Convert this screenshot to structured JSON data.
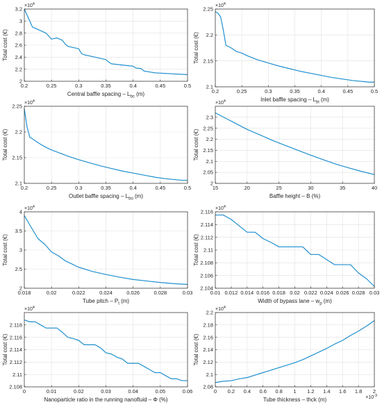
{
  "line_color": "#1f8fcf",
  "axis_color": "#262626",
  "grid_color": "#e1e1e1",
  "chart_data": [
    {
      "type": "line",
      "xlabel": "Central baffle spacing – L",
      "xlabel_sub": "bc",
      "xlabel_unit": " (m)",
      "ylabel": "Total cost (€)",
      "multiplier": "×10",
      "multiplier_exp": "4",
      "xlim": [
        0.2,
        0.5
      ],
      "ylim": [
        2.0,
        3.2
      ],
      "xticks": [
        0.2,
        0.25,
        0.3,
        0.35,
        0.4,
        0.45,
        0.5
      ],
      "xtick_labels": [
        "0.2",
        "0.25",
        "0.3",
        "0.35",
        "0.4",
        "0.45",
        "0.5"
      ],
      "yticks": [
        2.0,
        2.2,
        2.4,
        2.6,
        2.8,
        3.0,
        3.2
      ],
      "ytick_labels": [
        "2",
        "2.2",
        "2.4",
        "2.6",
        "2.8",
        "3",
        "3.2"
      ],
      "grid": true,
      "x": [
        0.2,
        0.205,
        0.21,
        0.215,
        0.22,
        0.225,
        0.23,
        0.235,
        0.24,
        0.245,
        0.25,
        0.255,
        0.26,
        0.265,
        0.27,
        0.275,
        0.28,
        0.285,
        0.29,
        0.295,
        0.3,
        0.305,
        0.31,
        0.32,
        0.33,
        0.34,
        0.35,
        0.355,
        0.36,
        0.37,
        0.38,
        0.39,
        0.4,
        0.405,
        0.41,
        0.415,
        0.42,
        0.43,
        0.44,
        0.45,
        0.46,
        0.47,
        0.48,
        0.49,
        0.5
      ],
      "y": [
        3.2,
        3.1,
        3.0,
        2.9,
        2.88,
        2.86,
        2.84,
        2.82,
        2.8,
        2.75,
        2.7,
        2.71,
        2.72,
        2.7,
        2.68,
        2.62,
        2.58,
        2.57,
        2.56,
        2.55,
        2.54,
        2.46,
        2.44,
        2.42,
        2.4,
        2.38,
        2.36,
        2.32,
        2.29,
        2.28,
        2.27,
        2.26,
        2.25,
        2.22,
        2.215,
        2.21,
        2.17,
        2.155,
        2.14,
        2.135,
        2.13,
        2.125,
        2.12,
        2.115,
        2.11
      ]
    },
    {
      "type": "line",
      "xlabel": "Inlet baffle spacing – L",
      "xlabel_sub": "bi",
      "xlabel_unit": " (m)",
      "ylabel": "Total cost (€)",
      "multiplier": "×10",
      "multiplier_exp": "4",
      "xlim": [
        0.2,
        0.5
      ],
      "ylim": [
        2.1,
        2.25
      ],
      "xticks": [
        0.2,
        0.25,
        0.3,
        0.35,
        0.4,
        0.45,
        0.5
      ],
      "xtick_labels": [
        "0.2",
        "0.25",
        "0.3",
        "0.35",
        "0.4",
        "0.45",
        "0.5"
      ],
      "yticks": [
        2.1,
        2.15,
        2.2,
        2.25
      ],
      "ytick_labels": [
        "2.1",
        "2.15",
        "2.2",
        "2.25"
      ],
      "grid": true,
      "x": [
        0.2,
        0.205,
        0.21,
        0.215,
        0.22,
        0.23,
        0.24,
        0.25,
        0.26,
        0.28,
        0.3,
        0.32,
        0.34,
        0.36,
        0.38,
        0.4,
        0.42,
        0.44,
        0.46,
        0.48,
        0.49,
        0.5
      ],
      "y": [
        2.245,
        2.242,
        2.235,
        2.21,
        2.18,
        2.175,
        2.168,
        2.165,
        2.16,
        2.152,
        2.146,
        2.14,
        2.135,
        2.13,
        2.126,
        2.122,
        2.118,
        2.115,
        2.112,
        2.11,
        2.109,
        2.109
      ]
    },
    {
      "type": "line",
      "xlabel": "Outlet baffle spacing – L",
      "xlabel_sub": "bo",
      "xlabel_unit": " (m)",
      "ylabel": "Total cost (€)",
      "multiplier": "×10",
      "multiplier_exp": "4",
      "xlim": [
        0.2,
        0.5
      ],
      "ylim": [
        2.1,
        2.25
      ],
      "xticks": [
        0.2,
        0.25,
        0.3,
        0.35,
        0.4,
        0.45,
        0.5
      ],
      "xtick_labels": [
        "0.2",
        "0.25",
        "0.3",
        "0.35",
        "0.4",
        "0.45",
        "0.5"
      ],
      "yticks": [
        2.1,
        2.15,
        2.2,
        2.25
      ],
      "ytick_labels": [
        "2.1",
        "2.15",
        "2.2",
        "2.25"
      ],
      "grid": true,
      "x": [
        0.2,
        0.205,
        0.21,
        0.22,
        0.23,
        0.24,
        0.25,
        0.26,
        0.28,
        0.3,
        0.32,
        0.34,
        0.36,
        0.38,
        0.4,
        0.42,
        0.44,
        0.46,
        0.48,
        0.49,
        0.5
      ],
      "y": [
        2.245,
        2.21,
        2.19,
        2.183,
        2.176,
        2.17,
        2.165,
        2.161,
        2.153,
        2.146,
        2.14,
        2.134,
        2.129,
        2.124,
        2.12,
        2.116,
        2.112,
        2.109,
        2.107,
        2.106,
        2.106
      ]
    },
    {
      "type": "line",
      "xlabel": "Baffle height – B (%)",
      "xlabel_sub": "",
      "xlabel_unit": "",
      "ylabel": "Total cost (€)",
      "multiplier": "×10",
      "multiplier_exp": "4",
      "xlim": [
        15,
        40
      ],
      "ylim": [
        2.0,
        2.35
      ],
      "xticks": [
        15,
        20,
        25,
        30,
        35,
        40
      ],
      "xtick_labels": [
        "15",
        "20",
        "25",
        "30",
        "35",
        "40"
      ],
      "yticks": [
        2.0,
        2.05,
        2.1,
        2.15,
        2.2,
        2.25,
        2.3
      ],
      "ytick_labels": [
        "2",
        "2.05",
        "2.1",
        "2.15",
        "2.2",
        "2.25",
        "2.3"
      ],
      "grid": true,
      "x": [
        15,
        16,
        17,
        18,
        19,
        20,
        22,
        24,
        26,
        28,
        30,
        32,
        34,
        36,
        38,
        40
      ],
      "y": [
        2.32,
        2.305,
        2.29,
        2.275,
        2.26,
        2.245,
        2.22,
        2.195,
        2.172,
        2.15,
        2.128,
        2.107,
        2.087,
        2.07,
        2.054,
        2.04
      ]
    },
    {
      "type": "line",
      "xlabel": "Tube pitch – P",
      "xlabel_sub": "t",
      "xlabel_unit": " (m)",
      "ylabel": "Total cost (€)",
      "multiplier": "×10",
      "multiplier_exp": "4",
      "xlim": [
        0.018,
        0.03
      ],
      "ylim": [
        2.0,
        4.0
      ],
      "xticks": [
        0.018,
        0.02,
        0.022,
        0.024,
        0.026,
        0.028,
        0.03
      ],
      "xtick_labels": [
        "0.018",
        "0.02",
        "0.022",
        "0.024",
        "0.026",
        "0.028",
        "0.03"
      ],
      "yticks": [
        2.0,
        2.5,
        3.0,
        3.5,
        4.0
      ],
      "ytick_labels": [
        "2",
        "2.5",
        "3",
        "3.5",
        "4"
      ],
      "grid": true,
      "x": [
        0.018,
        0.0185,
        0.019,
        0.0195,
        0.02,
        0.0205,
        0.021,
        0.022,
        0.023,
        0.024,
        0.025,
        0.026,
        0.027,
        0.028,
        0.029,
        0.03
      ],
      "y": [
        3.9,
        3.6,
        3.3,
        3.15,
        2.95,
        2.85,
        2.72,
        2.55,
        2.44,
        2.36,
        2.29,
        2.23,
        2.19,
        2.15,
        2.12,
        2.1
      ]
    },
    {
      "type": "line",
      "xlabel": "Width of bypass lane – w",
      "xlabel_sub": "p",
      "xlabel_unit": " (m)",
      "ylabel": "Total cost (€)",
      "multiplier": "×10",
      "multiplier_exp": "4",
      "xlim": [
        0.01,
        0.03
      ],
      "ylim": [
        2.104,
        2.116
      ],
      "xticks": [
        0.01,
        0.012,
        0.014,
        0.016,
        0.018,
        0.02,
        0.022,
        0.024,
        0.026,
        0.028,
        0.03
      ],
      "xtick_labels": [
        "0.01",
        "0.012",
        "0.014",
        "0.016",
        "0.018",
        "0.02",
        "0.022",
        "0.024",
        "0.026",
        "0.028",
        "0.03"
      ],
      "yticks": [
        2.104,
        2.106,
        2.108,
        2.11,
        2.112,
        2.114,
        2.116
      ],
      "ytick_labels": [
        "2.104",
        "2.106",
        "2.108",
        "2.11",
        "2.112",
        "2.114",
        "2.116"
      ],
      "grid": true,
      "x": [
        0.01,
        0.011,
        0.012,
        0.013,
        0.014,
        0.015,
        0.016,
        0.017,
        0.018,
        0.019,
        0.02,
        0.021,
        0.022,
        0.023,
        0.024,
        0.025,
        0.026,
        0.027,
        0.028,
        0.029,
        0.03
      ],
      "y": [
        2.1155,
        2.1155,
        2.1148,
        2.1138,
        2.1128,
        2.1128,
        2.1118,
        2.1112,
        2.1105,
        2.1105,
        2.1105,
        2.1105,
        2.1093,
        2.1093,
        2.1085,
        2.1077,
        2.1077,
        2.1077,
        2.1064,
        2.1055,
        2.1043
      ]
    },
    {
      "type": "line",
      "xlabel": "Nanoparticle ratio in the running nanofluid – Φ (%)",
      "xlabel_sub": "",
      "xlabel_unit": "",
      "ylabel": "Total cost (€)",
      "multiplier": "×10",
      "multiplier_exp": "4",
      "xlim": [
        0,
        0.06
      ],
      "ylim": [
        2.108,
        2.12
      ],
      "xticks": [
        0,
        0.01,
        0.02,
        0.03,
        0.04,
        0.05,
        0.06
      ],
      "xtick_labels": [
        "0",
        "0.01",
        "0.02",
        "0.03",
        "0.04",
        "0.05",
        "0.06"
      ],
      "yticks": [
        2.108,
        2.11,
        2.112,
        2.114,
        2.116,
        2.118
      ],
      "ytick_labels": [
        "2.108",
        "2.11",
        "2.112",
        "2.114",
        "2.116",
        "2.118"
      ],
      "grid": true,
      "x": [
        0,
        0.002,
        0.004,
        0.006,
        0.008,
        0.01,
        0.012,
        0.014,
        0.016,
        0.018,
        0.02,
        0.022,
        0.024,
        0.026,
        0.028,
        0.03,
        0.032,
        0.034,
        0.036,
        0.038,
        0.04,
        0.042,
        0.044,
        0.046,
        0.048,
        0.05,
        0.052,
        0.054,
        0.056,
        0.058,
        0.06
      ],
      "y": [
        2.1188,
        2.1185,
        2.1185,
        2.118,
        2.1175,
        2.1175,
        2.1175,
        2.1168,
        2.116,
        2.1158,
        2.1155,
        2.1148,
        2.1148,
        2.1148,
        2.1143,
        2.1135,
        2.1133,
        2.1128,
        2.1125,
        2.1118,
        2.1118,
        2.1118,
        2.1113,
        2.1108,
        2.1103,
        2.1103,
        2.1098,
        2.1093,
        2.1093,
        2.109,
        2.109
      ]
    },
    {
      "type": "line",
      "xlabel": "Tube thickness – thck (m)",
      "xlabel_sub": "",
      "xlabel_unit": "",
      "ylabel": "Total cost (€)",
      "multiplier": "×10",
      "multiplier_exp": "4",
      "x_multiplier": "×10",
      "x_multiplier_exp": "-3",
      "xlim": [
        0,
        2
      ],
      "ylim": [
        2.08,
        2.2
      ],
      "xticks": [
        0,
        0.2,
        0.4,
        0.6,
        0.8,
        1.0,
        1.2,
        1.4,
        1.6,
        1.8,
        2.0
      ],
      "xtick_labels": [
        "0",
        "0.2",
        "0.4",
        "0.6",
        "0.8",
        "1",
        "1.2",
        "1.4",
        "1.6",
        "1.8",
        "2"
      ],
      "yticks": [
        2.08,
        2.1,
        2.12,
        2.14,
        2.16,
        2.18,
        2.2
      ],
      "ytick_labels": [
        "2.08",
        "2.1",
        "2.12",
        "2.14",
        "2.16",
        "2.18",
        "2.2"
      ],
      "grid": true,
      "x": [
        0,
        0.1,
        0.2,
        0.3,
        0.4,
        0.5,
        0.6,
        0.7,
        0.8,
        0.9,
        1.0,
        1.1,
        1.2,
        1.3,
        1.4,
        1.5,
        1.6,
        1.7,
        1.8,
        1.9,
        2.0
      ],
      "y": [
        2.087,
        2.089,
        2.09,
        2.093,
        2.095,
        2.099,
        2.103,
        2.107,
        2.111,
        2.115,
        2.119,
        2.124,
        2.13,
        2.136,
        2.142,
        2.149,
        2.155,
        2.163,
        2.17,
        2.178,
        2.187
      ]
    }
  ]
}
